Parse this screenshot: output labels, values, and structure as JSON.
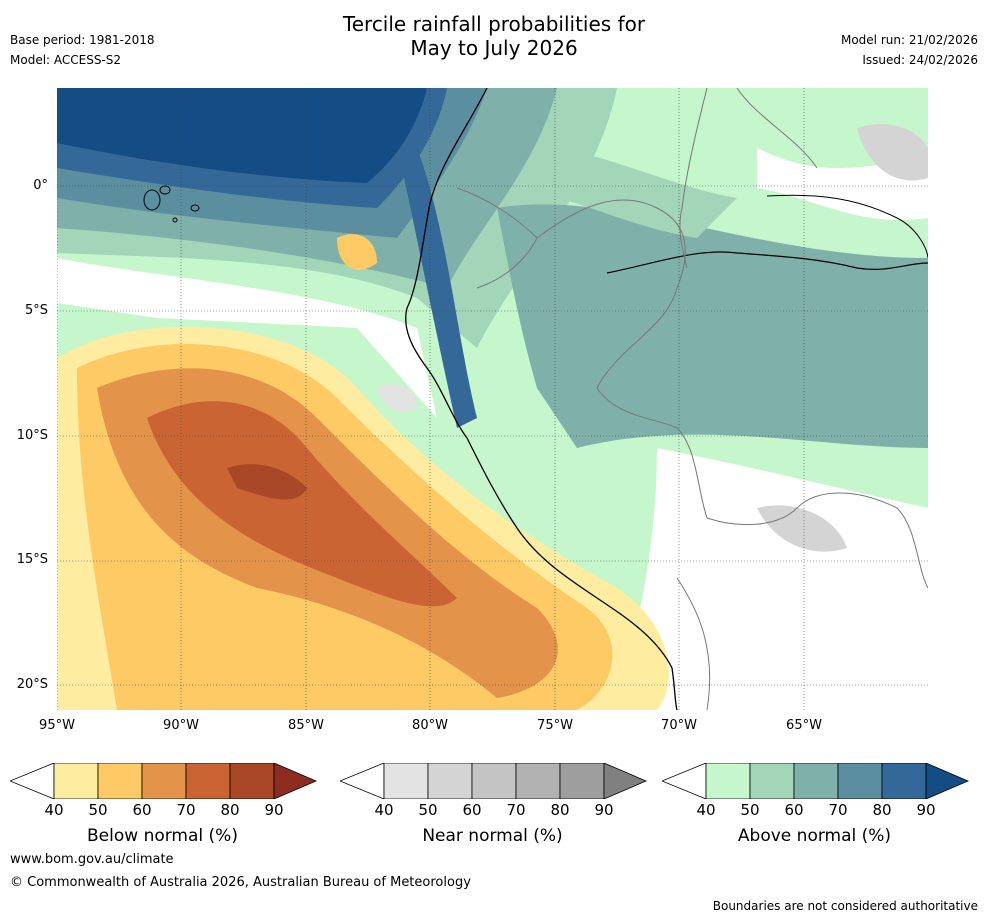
{
  "header": {
    "title_line1": "Tercile rainfall probabilities for",
    "title_line2": "May to July 2026",
    "base_period": "Base period: 1981-2018",
    "model": "Model: ACCESS-S2",
    "model_run": "Model run: 21/02/2026",
    "issued": "Issued: 24/02/2026"
  },
  "axes": {
    "y_ticks": [
      "0°",
      "5°S",
      "10°S",
      "15°S",
      "20°S"
    ],
    "x_ticks": [
      "95°W",
      "90°W",
      "85°W",
      "80°W",
      "75°W",
      "70°W",
      "65°W"
    ]
  },
  "colorbars": [
    {
      "id": "below",
      "title": "Below normal (%)",
      "ticks": [
        "40",
        "50",
        "60",
        "70",
        "80",
        "90"
      ],
      "colors": [
        "#ffffff",
        "#feeca0",
        "#fdca66",
        "#e3944a",
        "#ca6533",
        "#a94827",
        "#8c2d1f"
      ]
    },
    {
      "id": "near",
      "title": "Near normal (%)",
      "ticks": [
        "40",
        "50",
        "60",
        "70",
        "80",
        "90"
      ],
      "colors": [
        "#ffffff",
        "#e3e3e3",
        "#d4d4d4",
        "#c4c4c4",
        "#b2b2b2",
        "#9e9e9e",
        "#808080"
      ]
    },
    {
      "id": "above",
      "title": "Above normal (%)",
      "ticks": [
        "40",
        "50",
        "60",
        "70",
        "80",
        "90"
      ],
      "colors": [
        "#ffffff",
        "#c6f6cb",
        "#a3d5b8",
        "#7fb0a9",
        "#5b8fa0",
        "#336898",
        "#144c84"
      ]
    }
  ],
  "footer": {
    "website": "www.bom.gov.au/climate",
    "copyright": "© Commonwealth of Australia 2026, Australian Bureau of Meteorology",
    "disclaimer": "Boundaries are not considered authoritative"
  }
}
